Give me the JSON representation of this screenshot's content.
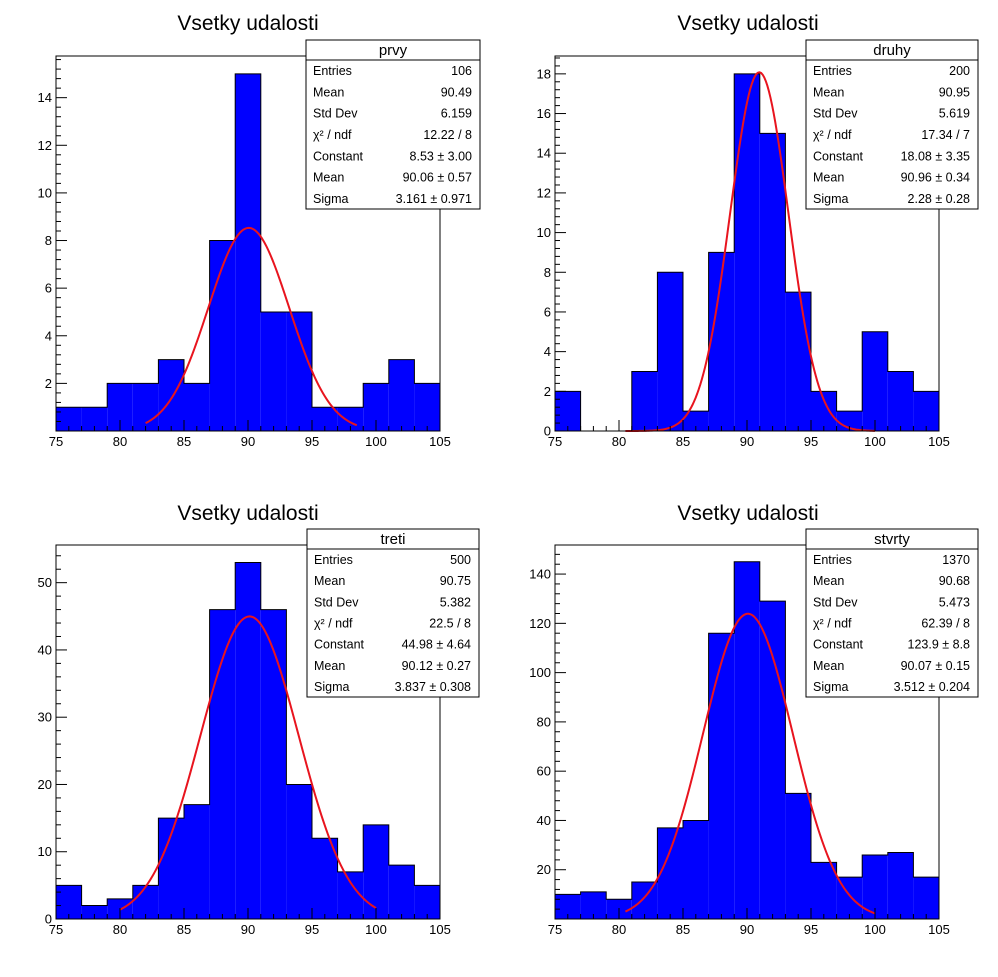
{
  "chart_data": [
    {
      "type": "bar",
      "title": "Vsetky udalosti",
      "xlim": [
        75,
        105
      ],
      "ylim": [
        0,
        15.75
      ],
      "x_ticks": [
        75,
        80,
        85,
        90,
        95,
        100,
        105
      ],
      "y_ticks": [
        2,
        4,
        6,
        8,
        10,
        12,
        14
      ],
      "bin_edges": [
        75,
        77,
        79,
        81,
        83,
        85,
        87,
        89,
        91,
        93,
        95,
        97,
        99,
        101,
        103,
        105
      ],
      "values": [
        1,
        1,
        2,
        2,
        3,
        2,
        8,
        15,
        5,
        5,
        1,
        1,
        2,
        3,
        2
      ],
      "fit": {
        "constant": 8.53,
        "mean": 90.06,
        "sigma": 3.161,
        "range": [
          82,
          98.5
        ]
      },
      "stats": {
        "name": "prvy",
        "rows": [
          {
            "label": "Entries",
            "value": "106"
          },
          {
            "label": "Mean",
            "value": "90.49"
          },
          {
            "label": "Std Dev",
            "value": "6.159"
          },
          {
            "label": "χ² / ndf",
            "value": "12.22 / 8"
          },
          {
            "label": "Constant",
            "value": "8.53 ± 3.00"
          },
          {
            "label": "Mean",
            "value": "90.06 ± 0.57"
          },
          {
            "label": "Sigma",
            "value": "3.161 ± 0.971"
          }
        ]
      },
      "colors": {
        "bars": "#0000ff",
        "fit": "#e8141e",
        "frame": "#000000"
      }
    },
    {
      "type": "bar",
      "title": "Vsetky udalosti",
      "xlim": [
        75,
        105
      ],
      "ylim": [
        0,
        18.9
      ],
      "x_ticks": [
        75,
        80,
        85,
        90,
        95,
        100,
        105
      ],
      "y_ticks": [
        0,
        2,
        4,
        6,
        8,
        10,
        12,
        14,
        16,
        18
      ],
      "bin_edges": [
        75,
        77,
        79,
        81,
        83,
        85,
        87,
        89,
        91,
        93,
        95,
        97,
        99,
        101,
        103,
        105
      ],
      "values": [
        2,
        0,
        0,
        3,
        8,
        1,
        9,
        18,
        15,
        7,
        2,
        1,
        5,
        3,
        2
      ],
      "fit": {
        "constant": 18.08,
        "mean": 90.96,
        "sigma": 2.28,
        "range": [
          80.5,
          100
        ]
      },
      "stats": {
        "name": "druhy",
        "rows": [
          {
            "label": "Entries",
            "value": "200"
          },
          {
            "label": "Mean",
            "value": "90.95"
          },
          {
            "label": "Std Dev",
            "value": "5.619"
          },
          {
            "label": "χ² / ndf",
            "value": "17.34 / 7"
          },
          {
            "label": "Constant",
            "value": "18.08 ± 3.35"
          },
          {
            "label": "Mean",
            "value": "90.96 ± 0.34"
          },
          {
            "label": "Sigma",
            "value": "2.28 ± 0.28"
          }
        ]
      },
      "colors": {
        "bars": "#0000ff",
        "fit": "#e8141e",
        "frame": "#000000"
      }
    },
    {
      "type": "bar",
      "title": "Vsetky udalosti",
      "xlim": [
        75,
        105
      ],
      "ylim": [
        0,
        55.6
      ],
      "x_ticks": [
        75,
        80,
        85,
        90,
        95,
        100,
        105
      ],
      "y_ticks": [
        0,
        10,
        20,
        30,
        40,
        50
      ],
      "bin_edges": [
        75,
        77,
        79,
        81,
        83,
        85,
        87,
        89,
        91,
        93,
        95,
        97,
        99,
        101,
        103,
        105
      ],
      "values": [
        5,
        2,
        3,
        5,
        15,
        17,
        46,
        53,
        46,
        20,
        12,
        7,
        14,
        8,
        5
      ],
      "fit": {
        "constant": 44.98,
        "mean": 90.12,
        "sigma": 3.837,
        "range": [
          80,
          100
        ]
      },
      "stats": {
        "name": "treti",
        "rows": [
          {
            "label": "Entries",
            "value": "500"
          },
          {
            "label": "Mean",
            "value": "90.75"
          },
          {
            "label": "Std Dev",
            "value": "5.382"
          },
          {
            "label": "χ² / ndf",
            "value": "22.5 / 8"
          },
          {
            "label": "Constant",
            "value": "44.98 ± 4.64"
          },
          {
            "label": "Mean",
            "value": "90.12 ± 0.27"
          },
          {
            "label": "Sigma",
            "value": "3.837 ± 0.308"
          }
        ]
      },
      "colors": {
        "bars": "#0000ff",
        "fit": "#e8141e",
        "frame": "#000000"
      }
    },
    {
      "type": "bar",
      "title": "Vsetky udalosti",
      "xlim": [
        75,
        105
      ],
      "ylim": [
        0,
        151.8
      ],
      "x_ticks": [
        75,
        80,
        85,
        90,
        95,
        100,
        105
      ],
      "y_ticks": [
        20,
        40,
        60,
        80,
        100,
        120,
        140
      ],
      "bin_edges": [
        75,
        77,
        79,
        81,
        83,
        85,
        87,
        89,
        91,
        93,
        95,
        97,
        99,
        101,
        103,
        105
      ],
      "values": [
        10,
        11,
        8,
        15,
        37,
        40,
        116,
        145,
        129,
        51,
        23,
        17,
        26,
        27,
        17
      ],
      "fit": {
        "constant": 123.9,
        "mean": 90.07,
        "sigma": 3.512,
        "range": [
          80.5,
          100
        ]
      },
      "stats": {
        "name": "stvrty",
        "rows": [
          {
            "label": "Entries",
            "value": "1370"
          },
          {
            "label": "Mean",
            "value": "90.68"
          },
          {
            "label": "Std Dev",
            "value": "5.473"
          },
          {
            "label": "χ² / ndf",
            "value": "62.39 / 8"
          },
          {
            "label": "Constant",
            "value": "123.9 ± 8.8"
          },
          {
            "label": "Mean",
            "value": "90.07 ± 0.15"
          },
          {
            "label": "Sigma",
            "value": "3.512 ± 0.204"
          }
        ]
      },
      "colors": {
        "bars": "#0000ff",
        "fit": "#e8141e",
        "frame": "#000000"
      }
    }
  ]
}
